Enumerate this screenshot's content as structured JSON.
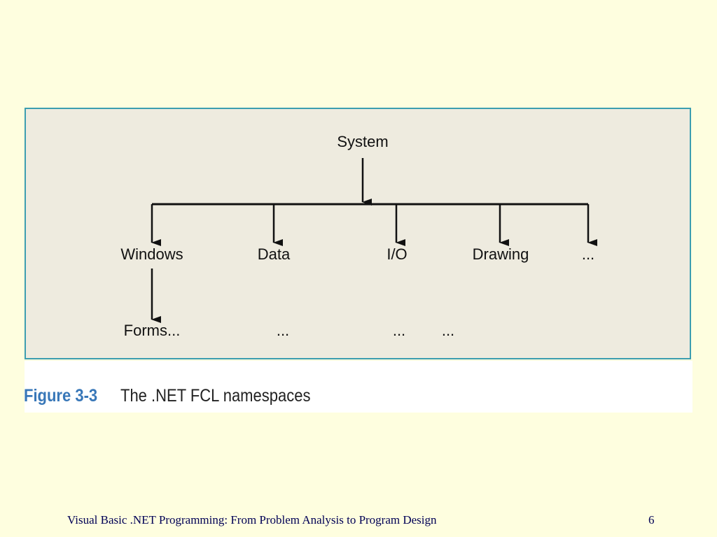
{
  "diagram": {
    "root": "System",
    "children": [
      {
        "label": "Windows",
        "sub": "Forms..."
      },
      {
        "label": "Data",
        "sub": "..."
      },
      {
        "label": "I/O",
        "sub": "..."
      },
      {
        "label": "Drawing",
        "sub": "..."
      },
      {
        "label": "...",
        "sub": ""
      }
    ]
  },
  "caption": {
    "figure_number": "Figure 3-3",
    "text": "The .NET FCL namespaces"
  },
  "footer": {
    "title": "Visual Basic .NET Programming: From Problem Analysis to Program Design",
    "page_number": "6"
  },
  "colors": {
    "background": "#fefedf",
    "figure_fill": "#eeebdf",
    "figure_border": "#3c9eb0",
    "caption_accent": "#3877b8"
  }
}
